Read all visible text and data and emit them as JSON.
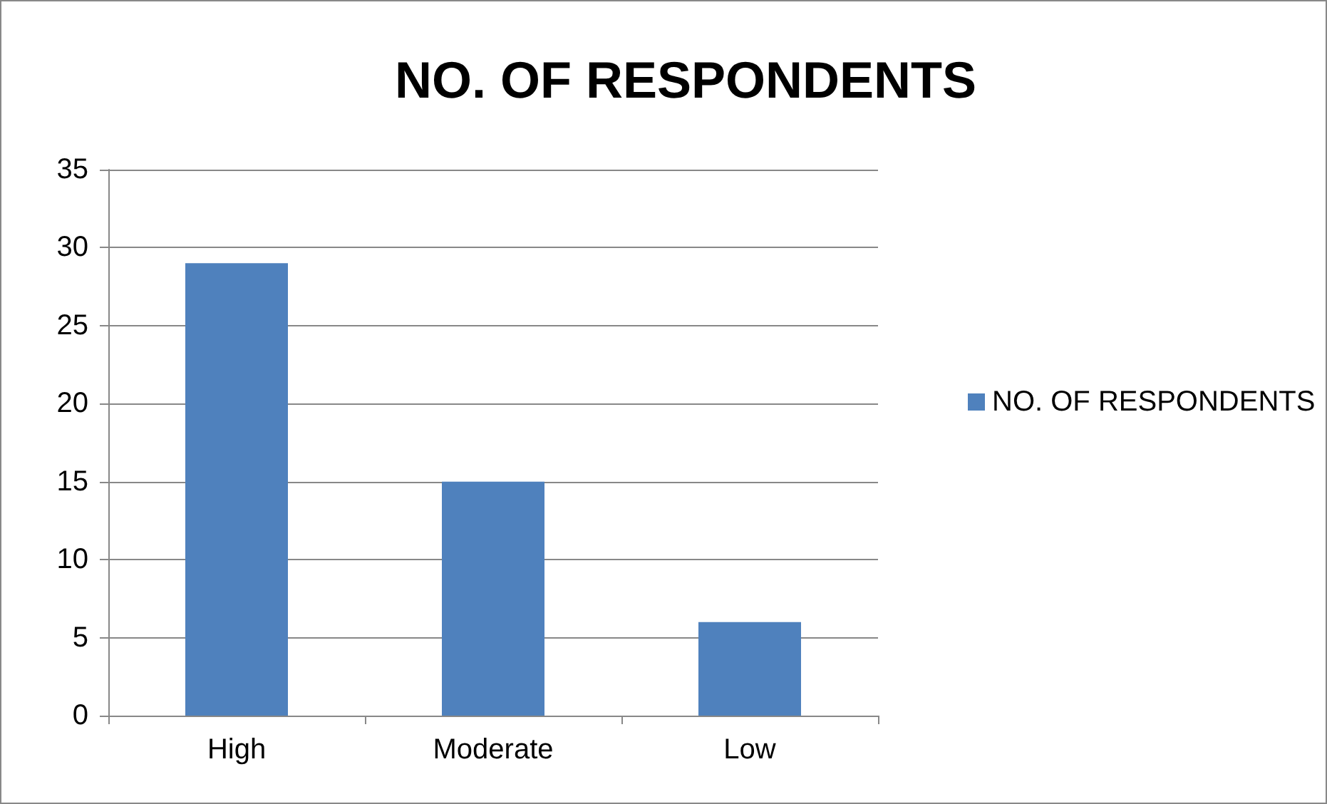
{
  "chart_data": {
    "type": "bar",
    "title": "NO. OF RESPONDENTS",
    "categories": [
      "High",
      "Moderate",
      "Low"
    ],
    "series": [
      {
        "name": "NO. OF RESPONDENTS",
        "color": "#4f81bd",
        "values": [
          29,
          15,
          6
        ]
      }
    ],
    "ylim": [
      0,
      35
    ],
    "yticks": [
      0,
      5,
      10,
      15,
      20,
      25,
      30,
      35
    ],
    "grid": "y",
    "legend": "right"
  }
}
